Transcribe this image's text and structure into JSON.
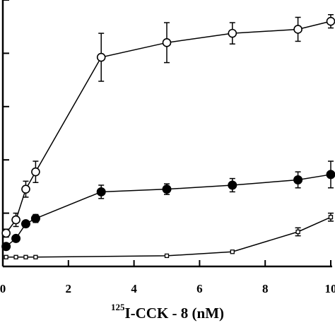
{
  "chart_data": {
    "type": "line",
    "title": "",
    "xlabel": {
      "sup": "125",
      "text": "I-CCK - 8 (nM)"
    },
    "ylabel": "",
    "xlim": [
      0,
      10
    ],
    "ylim": [
      0,
      1.0
    ],
    "x_ticks": [
      0,
      2,
      4,
      6,
      8,
      10
    ],
    "x_tick_labels": [
      "0",
      "2",
      "4",
      "6",
      "8",
      "10"
    ],
    "y_ticks": [
      0.2,
      0.4,
      0.6,
      0.8,
      1.0
    ],
    "grid": false,
    "legend": "none",
    "series": [
      {
        "marker": "open-circle",
        "x": [
          0.1,
          0.4,
          0.7,
          1.0,
          3.0,
          5.0,
          7.0,
          9.0,
          10.0
        ],
        "y": [
          0.125,
          0.175,
          0.29,
          0.355,
          0.785,
          0.84,
          0.875,
          0.89,
          0.92
        ],
        "err": [
          0.015,
          0.025,
          0.03,
          0.04,
          0.09,
          0.075,
          0.04,
          0.045,
          0.025
        ]
      },
      {
        "marker": "filled-circle",
        "x": [
          0.1,
          0.4,
          0.7,
          1.0,
          3.0,
          5.0,
          7.0,
          9.0,
          10.0
        ],
        "y": [
          0.075,
          0.105,
          0.16,
          0.18,
          0.28,
          0.29,
          0.305,
          0.325,
          0.345
        ],
        "err": [
          0.01,
          0.01,
          0.01,
          0.015,
          0.025,
          0.02,
          0.025,
          0.03,
          0.05
        ]
      },
      {
        "marker": "open-square",
        "x": [
          0.1,
          0.4,
          0.7,
          1.0,
          5.0,
          7.0,
          9.0,
          10.0
        ],
        "y": [
          0.035,
          0.035,
          0.035,
          0.035,
          0.04,
          0.055,
          0.13,
          0.185
        ],
        "err": [
          0,
          0,
          0,
          0,
          0,
          0,
          0.015,
          0.015
        ]
      }
    ]
  }
}
